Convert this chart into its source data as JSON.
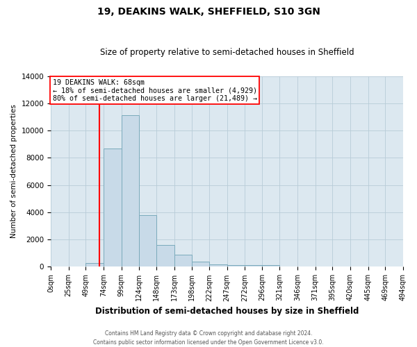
{
  "title": "19, DEAKINS WALK, SHEFFIELD, S10 3GN",
  "subtitle": "Size of property relative to semi-detached houses in Sheffield",
  "xlabel": "Distribution of semi-detached houses by size in Sheffield",
  "ylabel": "Number of semi-detached properties",
  "property_size": 68,
  "annotation_line1": "19 DEAKINS WALK: 68sqm",
  "annotation_line2": "← 18% of semi-detached houses are smaller (4,929)",
  "annotation_line3": "80% of semi-detached houses are larger (21,489) →",
  "bin_edges": [
    0,
    25,
    49,
    74,
    99,
    124,
    148,
    173,
    198,
    222,
    247,
    272,
    296,
    321,
    346,
    371,
    395,
    420,
    445,
    469,
    494
  ],
  "bin_labels": [
    "0sqm",
    "25sqm",
    "49sqm",
    "74sqm",
    "99sqm",
    "124sqm",
    "148sqm",
    "173sqm",
    "198sqm",
    "222sqm",
    "247sqm",
    "272sqm",
    "296sqm",
    "321sqm",
    "346sqm",
    "371sqm",
    "395sqm",
    "420sqm",
    "445sqm",
    "469sqm",
    "494sqm"
  ],
  "counts": [
    0,
    0,
    300,
    8700,
    11100,
    3800,
    1600,
    900,
    370,
    200,
    130,
    100,
    130,
    0,
    0,
    0,
    0,
    0,
    0,
    0
  ],
  "bar_color": "#c8dae8",
  "bar_edge_color": "#7aaabb",
  "vline_color": "red",
  "vline_x": 68,
  "ylim": [
    0,
    14000
  ],
  "yticks": [
    0,
    2000,
    4000,
    6000,
    8000,
    10000,
    12000,
    14000
  ],
  "footer_line1": "Contains HM Land Registry data © Crown copyright and database right 2024.",
  "footer_line2": "Contains public sector information licensed under the Open Government Licence v3.0.",
  "bg_color": "#ffffff",
  "axes_bg_color": "#dce8f0",
  "grid_color": "#b8ccd8"
}
